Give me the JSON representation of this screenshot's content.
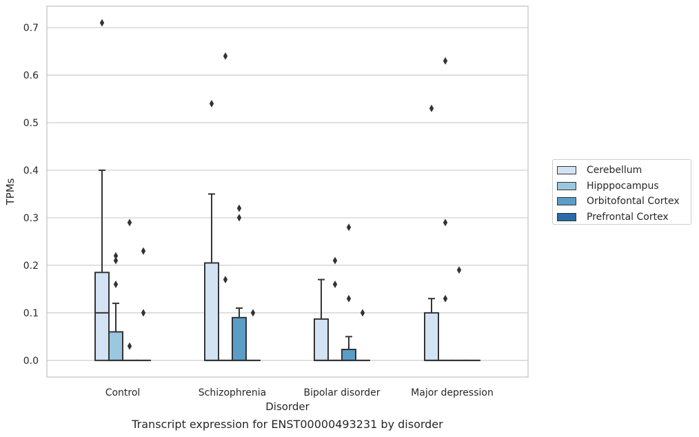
{
  "caption": "Transcript expression for ENST00000493231 by disorder",
  "chart_data": {
    "type": "box",
    "title": "",
    "xlabel": "Disorder",
    "ylabel": "TPMs",
    "ylim": [
      -0.035,
      0.745
    ],
    "yticks": [
      0.0,
      0.1,
      0.2,
      0.3,
      0.4,
      0.5,
      0.6,
      0.7
    ],
    "ytick_labels": [
      "0.0",
      "0.1",
      "0.2",
      "0.3",
      "0.4",
      "0.5",
      "0.6",
      "0.7"
    ],
    "grid": "horizontal",
    "legend_position": "right",
    "categories": [
      "Control",
      "Schizophrenia",
      "Bipolar disorder",
      "Major depression"
    ],
    "series": [
      {
        "name": "Cerebellum",
        "color": "#d2e3f3",
        "boxes": [
          {
            "q1": 0.0,
            "median": 0.1,
            "q3": 0.185,
            "whisker_low": 0.0,
            "whisker_high": 0.4,
            "outliers": [
              0.71
            ]
          },
          {
            "q1": 0.0,
            "median": 0.0,
            "q3": 0.205,
            "whisker_low": 0.0,
            "whisker_high": 0.35,
            "outliers": [
              0.54
            ]
          },
          {
            "q1": 0.0,
            "median": 0.0,
            "q3": 0.087,
            "whisker_low": 0.0,
            "whisker_high": 0.17,
            "outliers": []
          },
          {
            "q1": 0.0,
            "median": 0.0,
            "q3": 0.1,
            "whisker_low": 0.0,
            "whisker_high": 0.13,
            "outliers": [
              0.53
            ]
          }
        ]
      },
      {
        "name": "Hipppocampus",
        "color": "#9ac8e0",
        "boxes": [
          {
            "q1": 0.0,
            "median": 0.0,
            "q3": 0.06,
            "whisker_low": 0.0,
            "whisker_high": 0.12,
            "outliers": [
              0.22,
              0.21,
              0.16
            ]
          },
          {
            "q1": 0.0,
            "median": 0.0,
            "q3": 0.0,
            "whisker_low": 0.0,
            "whisker_high": 0.0,
            "outliers": [
              0.64,
              0.17
            ]
          },
          {
            "q1": 0.0,
            "median": 0.0,
            "q3": 0.0,
            "whisker_low": 0.0,
            "whisker_high": 0.0,
            "outliers": [
              0.21,
              0.16
            ]
          },
          {
            "q1": 0.0,
            "median": 0.0,
            "q3": 0.0,
            "whisker_low": 0.0,
            "whisker_high": 0.0,
            "outliers": [
              0.63,
              0.29,
              0.13
            ]
          }
        ]
      },
      {
        "name": "Orbitofontal Cortex",
        "color": "#5a9ec8",
        "boxes": [
          {
            "q1": 0.0,
            "median": 0.0,
            "q3": 0.0,
            "whisker_low": 0.0,
            "whisker_high": 0.0,
            "outliers": [
              0.29,
              0.03
            ]
          },
          {
            "q1": 0.0,
            "median": 0.0,
            "q3": 0.09,
            "whisker_low": 0.0,
            "whisker_high": 0.11,
            "outliers": [
              0.32,
              0.3
            ]
          },
          {
            "q1": 0.0,
            "median": 0.0,
            "q3": 0.023,
            "whisker_low": 0.0,
            "whisker_high": 0.05,
            "outliers": [
              0.28,
              0.13
            ]
          },
          {
            "q1": 0.0,
            "median": 0.0,
            "q3": 0.0,
            "whisker_low": 0.0,
            "whisker_high": 0.0,
            "outliers": [
              0.19
            ]
          }
        ]
      },
      {
        "name": "Prefrontal Cortex",
        "color": "#2a6ba9",
        "boxes": [
          {
            "q1": 0.0,
            "median": 0.0,
            "q3": 0.0,
            "whisker_low": 0.0,
            "whisker_high": 0.0,
            "outliers": [
              0.23,
              0.1
            ]
          },
          {
            "q1": 0.0,
            "median": 0.0,
            "q3": 0.0,
            "whisker_low": 0.0,
            "whisker_high": 0.0,
            "outliers": [
              0.1
            ]
          },
          {
            "q1": 0.0,
            "median": 0.0,
            "q3": 0.0,
            "whisker_low": 0.0,
            "whisker_high": 0.0,
            "outliers": [
              0.1
            ]
          },
          {
            "q1": 0.0,
            "median": 0.0,
            "q3": 0.0,
            "whisker_low": 0.0,
            "whisker_high": 0.0,
            "outliers": []
          }
        ]
      }
    ]
  }
}
